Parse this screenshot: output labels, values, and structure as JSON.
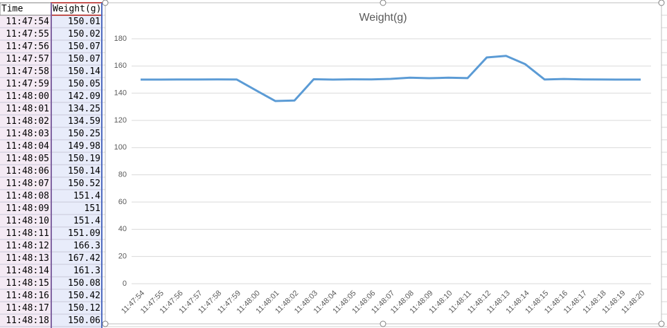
{
  "table": {
    "headers": [
      "Time",
      "Weight(g)"
    ],
    "rows": [
      [
        "11:47:54",
        150.01
      ],
      [
        "11:47:55",
        150.02
      ],
      [
        "11:47:56",
        150.07
      ],
      [
        "11:47:57",
        150.07
      ],
      [
        "11:47:58",
        150.14
      ],
      [
        "11:47:59",
        150.05
      ],
      [
        "11:48:00",
        142.09
      ],
      [
        "11:48:01",
        134.25
      ],
      [
        "11:48:02",
        134.59
      ],
      [
        "11:48:03",
        150.25
      ],
      [
        "11:48:04",
        149.98
      ],
      [
        "11:48:05",
        150.19
      ],
      [
        "11:48:06",
        150.14
      ],
      [
        "11:48:07",
        150.52
      ],
      [
        "11:48:08",
        151.4
      ],
      [
        "11:48:09",
        151
      ],
      [
        "11:48:10",
        151.4
      ],
      [
        "11:48:11",
        151.09
      ],
      [
        "11:48:12",
        166.3
      ],
      [
        "11:48:13",
        167.42
      ],
      [
        "11:48:14",
        161.3
      ],
      [
        "11:48:15",
        150.08
      ],
      [
        "11:48:16",
        150.42
      ],
      [
        "11:48:17",
        150.12
      ],
      [
        "11:48:18",
        150.06
      ]
    ]
  },
  "chart_data": {
    "type": "line",
    "title": "Weight(g)",
    "categories": [
      "11:47:54",
      "11:47:55",
      "11:47:56",
      "11:47:57",
      "11:47:58",
      "11:47:59",
      "11:48:00",
      "11:48:01",
      "11:48:02",
      "11:48:03",
      "11:48:04",
      "11:48:05",
      "11:48:06",
      "11:48:07",
      "11:48:08",
      "11:48:09",
      "11:48:10",
      "11:48:11",
      "11:48:12",
      "11:48:13",
      "11:48:14",
      "11:48:15",
      "11:48:16",
      "11:48:17",
      "11:48:18",
      "11:48:19",
      "11:48:20"
    ],
    "values": [
      150.01,
      150.02,
      150.07,
      150.07,
      150.14,
      150.05,
      142.09,
      134.25,
      134.59,
      150.25,
      149.98,
      150.19,
      150.14,
      150.52,
      151.4,
      151,
      151.4,
      151.09,
      166.3,
      167.42,
      161.3,
      150.08,
      150.42,
      150.12,
      150.06,
      150,
      150
    ],
    "color": "#5b9bd5",
    "ylim": [
      0,
      180
    ],
    "yticks": [
      0,
      20,
      40,
      60,
      80,
      100,
      120,
      140,
      160,
      180
    ],
    "grid": true
  }
}
